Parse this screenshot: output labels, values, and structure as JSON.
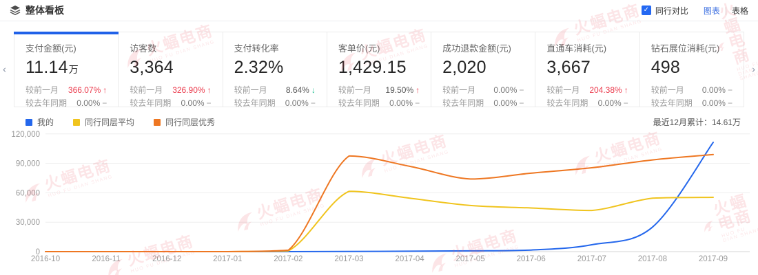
{
  "header": {
    "title": "整体看板",
    "compare_label": "同行对比",
    "compare_checked": true,
    "check_glyph": "✓",
    "view_chart": "图表",
    "view_divider": "|",
    "view_table": "表格"
  },
  "nav": {
    "prev_glyph": "‹",
    "next_glyph": "›"
  },
  "cards": [
    {
      "label": "支付金额(元)",
      "value": "11.14",
      "suffix": "万",
      "active": true,
      "rows": [
        {
          "label": "较前一月",
          "value": "366.07%",
          "delta": "up",
          "value_color": "red"
        },
        {
          "label": "较去年同期",
          "value": "0.00%",
          "delta": "flat",
          "value_color": "gray"
        }
      ]
    },
    {
      "label": "访客数",
      "value": "3,364",
      "suffix": "",
      "active": false,
      "rows": [
        {
          "label": "较前一月",
          "value": "326.90%",
          "delta": "up",
          "value_color": "red"
        },
        {
          "label": "较去年同期",
          "value": "0.00%",
          "delta": "flat",
          "value_color": "gray"
        }
      ]
    },
    {
      "label": "支付转化率",
      "value": "2.32%",
      "suffix": "",
      "active": false,
      "rows": [
        {
          "label": "较前一月",
          "value": "8.64%",
          "delta": "down",
          "value_color": "dark"
        },
        {
          "label": "较去年同期",
          "value": "0.00%",
          "delta": "flat",
          "value_color": "gray"
        }
      ]
    },
    {
      "label": "客单价(元)",
      "value": "1,429.15",
      "suffix": "",
      "active": false,
      "rows": [
        {
          "label": "较前一月",
          "value": "19.50%",
          "delta": "up",
          "value_color": "dark"
        },
        {
          "label": "较去年同期",
          "value": "0.00%",
          "delta": "flat",
          "value_color": "gray"
        }
      ]
    },
    {
      "label": "成功退款金额(元)",
      "value": "2,020",
      "suffix": "",
      "active": false,
      "rows": [
        {
          "label": "较前一月",
          "value": "0.00%",
          "delta": "flat",
          "value_color": "gray"
        },
        {
          "label": "较去年同期",
          "value": "0.00%",
          "delta": "flat",
          "value_color": "gray"
        }
      ]
    },
    {
      "label": "直通车消耗(元)",
      "value": "3,667",
      "suffix": "",
      "active": false,
      "rows": [
        {
          "label": "较前一月",
          "value": "204.38%",
          "delta": "up",
          "value_color": "red"
        },
        {
          "label": "较去年同期",
          "value": "0.00%",
          "delta": "flat",
          "value_color": "gray"
        }
      ]
    },
    {
      "label": "钻石展位消耗(元)",
      "value": "498",
      "suffix": "",
      "active": false,
      "rows": [
        {
          "label": "较前一月",
          "value": "0.00%",
          "delta": "flat",
          "value_color": "gray"
        },
        {
          "label": "较去年同期",
          "value": "0.00%",
          "delta": "flat",
          "value_color": "gray"
        }
      ]
    }
  ],
  "legend": [
    {
      "label": "我的",
      "color": "#2467ec"
    },
    {
      "label": "同行同层平均",
      "color": "#f0c41e"
    },
    {
      "label": "同行同层优秀",
      "color": "#ee7722"
    }
  ],
  "summary": "最近12月累计：14.61万",
  "watermark": {
    "text": "火蝠电商",
    "subtext": "HUO FU DIAN SHANG"
  },
  "chart_data": {
    "type": "line",
    "title": "",
    "xlabel": "",
    "ylabel": "",
    "categories": [
      "2016-10",
      "2016-11",
      "2016-12",
      "2017-01",
      "2017-02",
      "2017-03",
      "2017-04",
      "2017-05",
      "2017-06",
      "2017-07",
      "2017-08",
      "2017-09"
    ],
    "series": [
      {
        "name": "我的",
        "color": "#2467ec",
        "values": [
          0,
          0,
          0,
          0,
          0,
          200,
          400,
          800,
          1600,
          7000,
          25000,
          111400
        ]
      },
      {
        "name": "同行同层平均",
        "color": "#f0c41e",
        "values": [
          0,
          0,
          0,
          0,
          800,
          61500,
          54500,
          47000,
          44500,
          42000,
          54500,
          55400
        ]
      },
      {
        "name": "同行同层优秀",
        "color": "#ee7722",
        "values": [
          0,
          0,
          0,
          0,
          1500,
          97500,
          87000,
          74000,
          80000,
          85500,
          93500,
          99000
        ]
      }
    ],
    "ylim": [
      0,
      120000
    ],
    "yticks": [
      0,
      30000,
      60000,
      90000,
      120000
    ],
    "grid": true,
    "legend_position": "top-left"
  }
}
